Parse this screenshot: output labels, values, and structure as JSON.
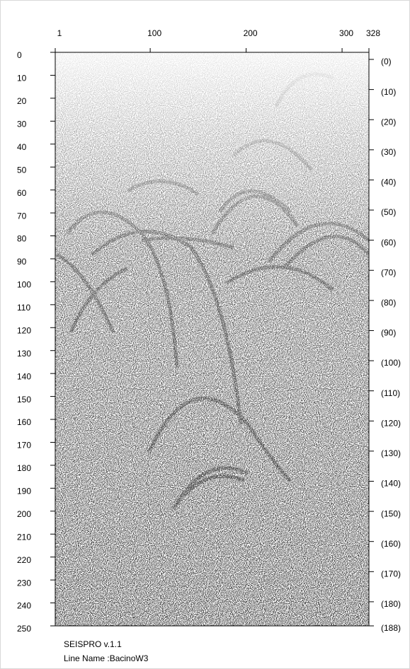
{
  "chart_data": {
    "type": "image",
    "xlim": [
      1,
      328
    ],
    "xticks": [
      1,
      100,
      200,
      300,
      328
    ],
    "ylim": [
      0,
      250
    ],
    "yticks": [
      0,
      10,
      20,
      30,
      40,
      50,
      60,
      70,
      80,
      90,
      100,
      110,
      120,
      130,
      140,
      150,
      160,
      170,
      180,
      190,
      200,
      210,
      220,
      230,
      240,
      250
    ],
    "y2lim": [
      0,
      188
    ],
    "y2ticks": [
      {
        "value": 0,
        "label": "(0)"
      },
      {
        "value": 10,
        "label": "(10)"
      },
      {
        "value": 20,
        "label": "(20)"
      },
      {
        "value": 30,
        "label": "(30)"
      },
      {
        "value": 40,
        "label": "(40)"
      },
      {
        "value": 50,
        "label": "(50)"
      },
      {
        "value": 60,
        "label": "(60)"
      },
      {
        "value": 70,
        "label": "(70)"
      },
      {
        "value": 80,
        "label": "(80)"
      },
      {
        "value": 90,
        "label": "(90)"
      },
      {
        "value": 100,
        "label": "(100)"
      },
      {
        "value": 110,
        "label": "(110)"
      },
      {
        "value": 120,
        "label": "(120)"
      },
      {
        "value": 130,
        "label": "(130)"
      },
      {
        "value": 140,
        "label": "(140)"
      },
      {
        "value": 150,
        "label": "(150)"
      },
      {
        "value": 160,
        "label": "(160)"
      },
      {
        "value": 170,
        "label": "(170)"
      },
      {
        "value": 180,
        "label": "(180)"
      },
      {
        "value": 188,
        "label": "(188)"
      }
    ],
    "annotations": [
      "SEISPRO v.1.1",
      "Line Name :BacinoW3"
    ]
  }
}
